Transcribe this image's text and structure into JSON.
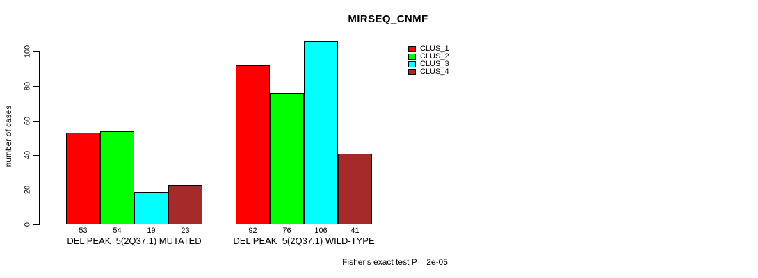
{
  "chart_data": {
    "type": "bar",
    "title": "MIRSEQ_CNMF",
    "ylabel": "number of cases",
    "xlabel": "",
    "ylim": [
      0,
      110
    ],
    "yticks": [
      0,
      20,
      40,
      60,
      80,
      100
    ],
    "grid": false,
    "legend_position": "top-right",
    "categories": [
      "DEL PEAK  5(2Q37.1) MUTATED",
      "DEL PEAK  5(2Q37.1) WILD-TYPE"
    ],
    "series": [
      {
        "name": "CLUS_1",
        "color": "#FF0000",
        "values": [
          53,
          92
        ]
      },
      {
        "name": "CLUS_2",
        "color": "#00FF00",
        "values": [
          54,
          76
        ]
      },
      {
        "name": "CLUS_3",
        "color": "#00FFFF",
        "values": [
          19,
          106
        ]
      },
      {
        "name": "CLUS_4",
        "color": "#A52A2A",
        "values": [
          23,
          41
        ]
      }
    ],
    "bar_value_labels": [
      [
        53,
        54,
        19,
        23
      ],
      [
        92,
        76,
        106,
        41
      ]
    ],
    "footnote": "Fisher's exact test P = 2e-05"
  }
}
